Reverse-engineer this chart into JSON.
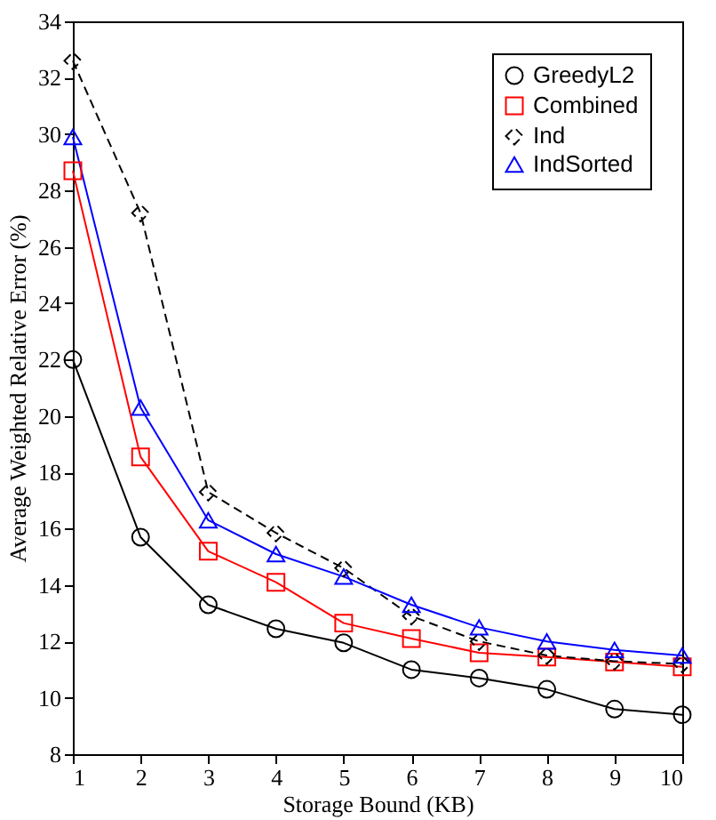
{
  "chart_data": {
    "type": "line",
    "xlabel": "Storage Bound (KB)",
    "ylabel": "Average Weighted Relative Error (%)",
    "x": [
      1,
      2,
      3,
      4,
      5,
      6,
      7,
      8,
      9,
      10
    ],
    "series": [
      {
        "name": "GreedyL2",
        "color": "#000000",
        "marker": "circle",
        "line_style": "solid",
        "values": [
          22.0,
          15.7,
          13.3,
          12.45,
          11.95,
          11.0,
          10.7,
          10.3,
          9.6,
          9.4
        ]
      },
      {
        "name": "Combined",
        "color": "#ff0000",
        "marker": "square",
        "line_style": "solid",
        "values": [
          28.7,
          18.55,
          15.2,
          14.1,
          12.65,
          12.1,
          11.6,
          11.45,
          11.27,
          11.1
        ]
      },
      {
        "name": "Ind",
        "color": "#000000",
        "marker": "diamond",
        "line_style": "dashed",
        "values": [
          32.6,
          27.2,
          17.3,
          15.85,
          14.6,
          12.9,
          12.0,
          11.5,
          11.3,
          11.2
        ]
      },
      {
        "name": "IndSorted",
        "color": "#0000ff",
        "marker": "triangle",
        "line_style": "solid",
        "values": [
          29.9,
          20.3,
          16.3,
          15.1,
          14.3,
          13.3,
          12.5,
          12.0,
          11.7,
          11.5
        ]
      }
    ],
    "xlim": [
      1,
      10
    ],
    "xticks": [
      1,
      2,
      3,
      4,
      5,
      6,
      7,
      8,
      9,
      10
    ],
    "ylim": [
      8,
      34
    ],
    "yticks": [
      8,
      10,
      12,
      14,
      16,
      18,
      20,
      22,
      24,
      26,
      28,
      30,
      32,
      34
    ],
    "grid": false,
    "legend": "top right"
  }
}
